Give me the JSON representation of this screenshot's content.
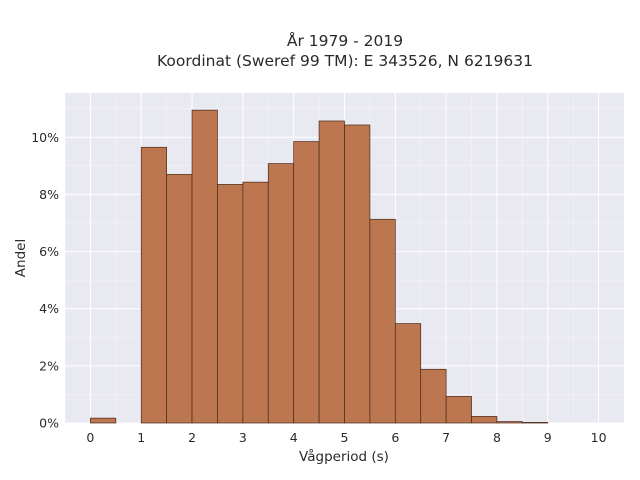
{
  "chart_data": {
    "type": "bar",
    "title_line1": "År 1979 - 2019",
    "title_line2": "Koordinat (Sweref 99 TM): E 343526, N 6219631",
    "xlabel": "Vågperiod (s)",
    "ylabel": "Andel",
    "xlim": [
      -0.5,
      10.5
    ],
    "ylim": [
      0,
      0.1155
    ],
    "x_ticks": [
      0,
      1,
      2,
      3,
      4,
      5,
      6,
      7,
      8,
      9,
      10
    ],
    "x_tick_labels": [
      "0",
      "1",
      "2",
      "3",
      "4",
      "5",
      "6",
      "7",
      "8",
      "9",
      "10"
    ],
    "y_ticks": [
      0,
      0.02,
      0.04,
      0.06,
      0.08,
      0.1
    ],
    "y_tick_labels": [
      "0%",
      "2%",
      "4%",
      "6%",
      "8%",
      "10%"
    ],
    "bin_width": 0.5,
    "bins": [
      {
        "x0": 0.0,
        "value": 0.0017
      },
      {
        "x0": 0.5,
        "value": 0.0
      },
      {
        "x0": 1.0,
        "value": 0.0965
      },
      {
        "x0": 1.5,
        "value": 0.087
      },
      {
        "x0": 2.0,
        "value": 0.1095
      },
      {
        "x0": 2.5,
        "value": 0.0835
      },
      {
        "x0": 3.0,
        "value": 0.0843
      },
      {
        "x0": 3.5,
        "value": 0.0908
      },
      {
        "x0": 4.0,
        "value": 0.0985
      },
      {
        "x0": 4.5,
        "value": 0.1057
      },
      {
        "x0": 5.0,
        "value": 0.1043
      },
      {
        "x0": 5.5,
        "value": 0.0713
      },
      {
        "x0": 6.0,
        "value": 0.0348
      },
      {
        "x0": 6.5,
        "value": 0.0188
      },
      {
        "x0": 7.0,
        "value": 0.0093
      },
      {
        "x0": 7.5,
        "value": 0.0023
      },
      {
        "x0": 8.0,
        "value": 0.0005
      },
      {
        "x0": 8.5,
        "value": 0.0002
      }
    ],
    "grid": true,
    "colors": {
      "bar_fill": "#bc7650",
      "bar_stroke": "#4a2a18",
      "plot_bg": "#e9e9f1",
      "grid": "#ffffff"
    }
  }
}
